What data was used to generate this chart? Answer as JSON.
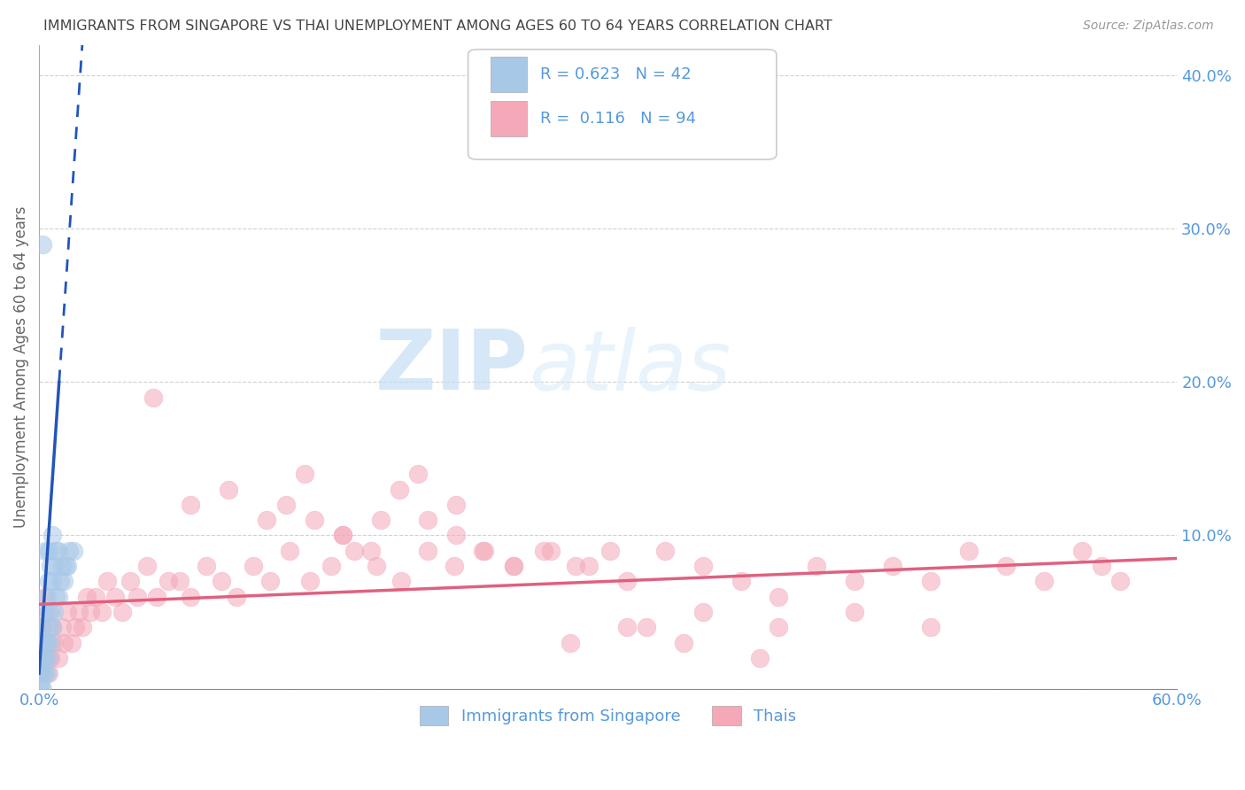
{
  "title": "IMMIGRANTS FROM SINGAPORE VS THAI UNEMPLOYMENT AMONG AGES 60 TO 64 YEARS CORRELATION CHART",
  "source": "Source: ZipAtlas.com",
  "ylabel": "Unemployment Among Ages 60 to 64 years",
  "xlim": [
    0.0,
    0.6
  ],
  "ylim": [
    0.0,
    0.42
  ],
  "xticks": [
    0.0,
    0.1,
    0.2,
    0.3,
    0.4,
    0.5,
    0.6
  ],
  "xtick_labels": [
    "0.0%",
    "",
    "",
    "",
    "",
    "",
    "60.0%"
  ],
  "yticks": [
    0.0,
    0.1,
    0.2,
    0.3,
    0.4
  ],
  "ytick_labels_right": [
    "",
    "10.0%",
    "20.0%",
    "30.0%",
    "40.0%"
  ],
  "legend_labels": [
    "Immigrants from Singapore",
    "Thais"
  ],
  "singapore_R": "0.623",
  "singapore_N": "42",
  "thai_R": "0.116",
  "thai_N": "94",
  "singapore_color": "#a8c8e8",
  "thai_color": "#f4a8b8",
  "singapore_line_color": "#2255bb",
  "thai_line_color": "#e06080",
  "watermark_zip": "ZIP",
  "watermark_atlas": "atlas",
  "background_color": "#ffffff",
  "grid_color": "#cccccc",
  "title_color": "#444444",
  "axis_label_color": "#666666",
  "tick_color": "#5599dd",
  "singapore_scatter_x": [
    0.001,
    0.001,
    0.001,
    0.001,
    0.001,
    0.002,
    0.002,
    0.002,
    0.002,
    0.002,
    0.003,
    0.003,
    0.003,
    0.003,
    0.004,
    0.004,
    0.004,
    0.005,
    0.005,
    0.005,
    0.005,
    0.006,
    0.006,
    0.006,
    0.007,
    0.007,
    0.007,
    0.008,
    0.008,
    0.009,
    0.009,
    0.01,
    0.01,
    0.011,
    0.012,
    0.013,
    0.014,
    0.015,
    0.016,
    0.018,
    0.002,
    0.003
  ],
  "singapore_scatter_y": [
    0.0,
    0.005,
    0.01,
    0.015,
    0.02,
    0.0,
    0.01,
    0.02,
    0.03,
    0.04,
    0.01,
    0.02,
    0.03,
    0.05,
    0.01,
    0.03,
    0.06,
    0.02,
    0.04,
    0.07,
    0.09,
    0.03,
    0.05,
    0.08,
    0.04,
    0.07,
    0.1,
    0.05,
    0.08,
    0.06,
    0.09,
    0.06,
    0.09,
    0.07,
    0.08,
    0.07,
    0.08,
    0.08,
    0.09,
    0.09,
    0.29,
    0.09
  ],
  "singapore_line_x": [
    0.0,
    0.02
  ],
  "singapore_line_y_start": 0.0,
  "singapore_line_slope": 18.0,
  "thai_scatter_x": [
    0.002,
    0.002,
    0.003,
    0.003,
    0.004,
    0.005,
    0.005,
    0.006,
    0.007,
    0.008,
    0.01,
    0.012,
    0.013,
    0.015,
    0.017,
    0.019,
    0.021,
    0.023,
    0.025,
    0.027,
    0.03,
    0.033,
    0.036,
    0.04,
    0.044,
    0.048,
    0.052,
    0.057,
    0.062,
    0.068,
    0.074,
    0.08,
    0.088,
    0.096,
    0.104,
    0.113,
    0.122,
    0.132,
    0.143,
    0.154,
    0.166,
    0.178,
    0.191,
    0.205,
    0.219,
    0.234,
    0.25,
    0.266,
    0.283,
    0.301,
    0.13,
    0.145,
    0.16,
    0.175,
    0.19,
    0.205,
    0.22,
    0.235,
    0.25,
    0.27,
    0.29,
    0.31,
    0.33,
    0.35,
    0.37,
    0.39,
    0.41,
    0.43,
    0.45,
    0.47,
    0.49,
    0.51,
    0.53,
    0.55,
    0.57,
    0.32,
    0.35,
    0.39,
    0.43,
    0.47,
    0.06,
    0.08,
    0.1,
    0.12,
    0.14,
    0.16,
    0.18,
    0.2,
    0.22,
    0.28,
    0.31,
    0.34,
    0.38,
    0.56
  ],
  "thai_scatter_y": [
    0.01,
    0.04,
    0.02,
    0.06,
    0.03,
    0.01,
    0.05,
    0.02,
    0.04,
    0.03,
    0.02,
    0.04,
    0.03,
    0.05,
    0.03,
    0.04,
    0.05,
    0.04,
    0.06,
    0.05,
    0.06,
    0.05,
    0.07,
    0.06,
    0.05,
    0.07,
    0.06,
    0.08,
    0.06,
    0.07,
    0.07,
    0.06,
    0.08,
    0.07,
    0.06,
    0.08,
    0.07,
    0.09,
    0.07,
    0.08,
    0.09,
    0.08,
    0.07,
    0.09,
    0.08,
    0.09,
    0.08,
    0.09,
    0.08,
    0.09,
    0.12,
    0.11,
    0.1,
    0.09,
    0.13,
    0.11,
    0.1,
    0.09,
    0.08,
    0.09,
    0.08,
    0.07,
    0.09,
    0.08,
    0.07,
    0.06,
    0.08,
    0.07,
    0.08,
    0.07,
    0.09,
    0.08,
    0.07,
    0.09,
    0.07,
    0.04,
    0.05,
    0.04,
    0.05,
    0.04,
    0.19,
    0.12,
    0.13,
    0.11,
    0.14,
    0.1,
    0.11,
    0.14,
    0.12,
    0.03,
    0.04,
    0.03,
    0.02,
    0.08
  ],
  "thai_line_x": [
    0.0,
    0.6
  ],
  "thai_line_y": [
    0.055,
    0.085
  ]
}
